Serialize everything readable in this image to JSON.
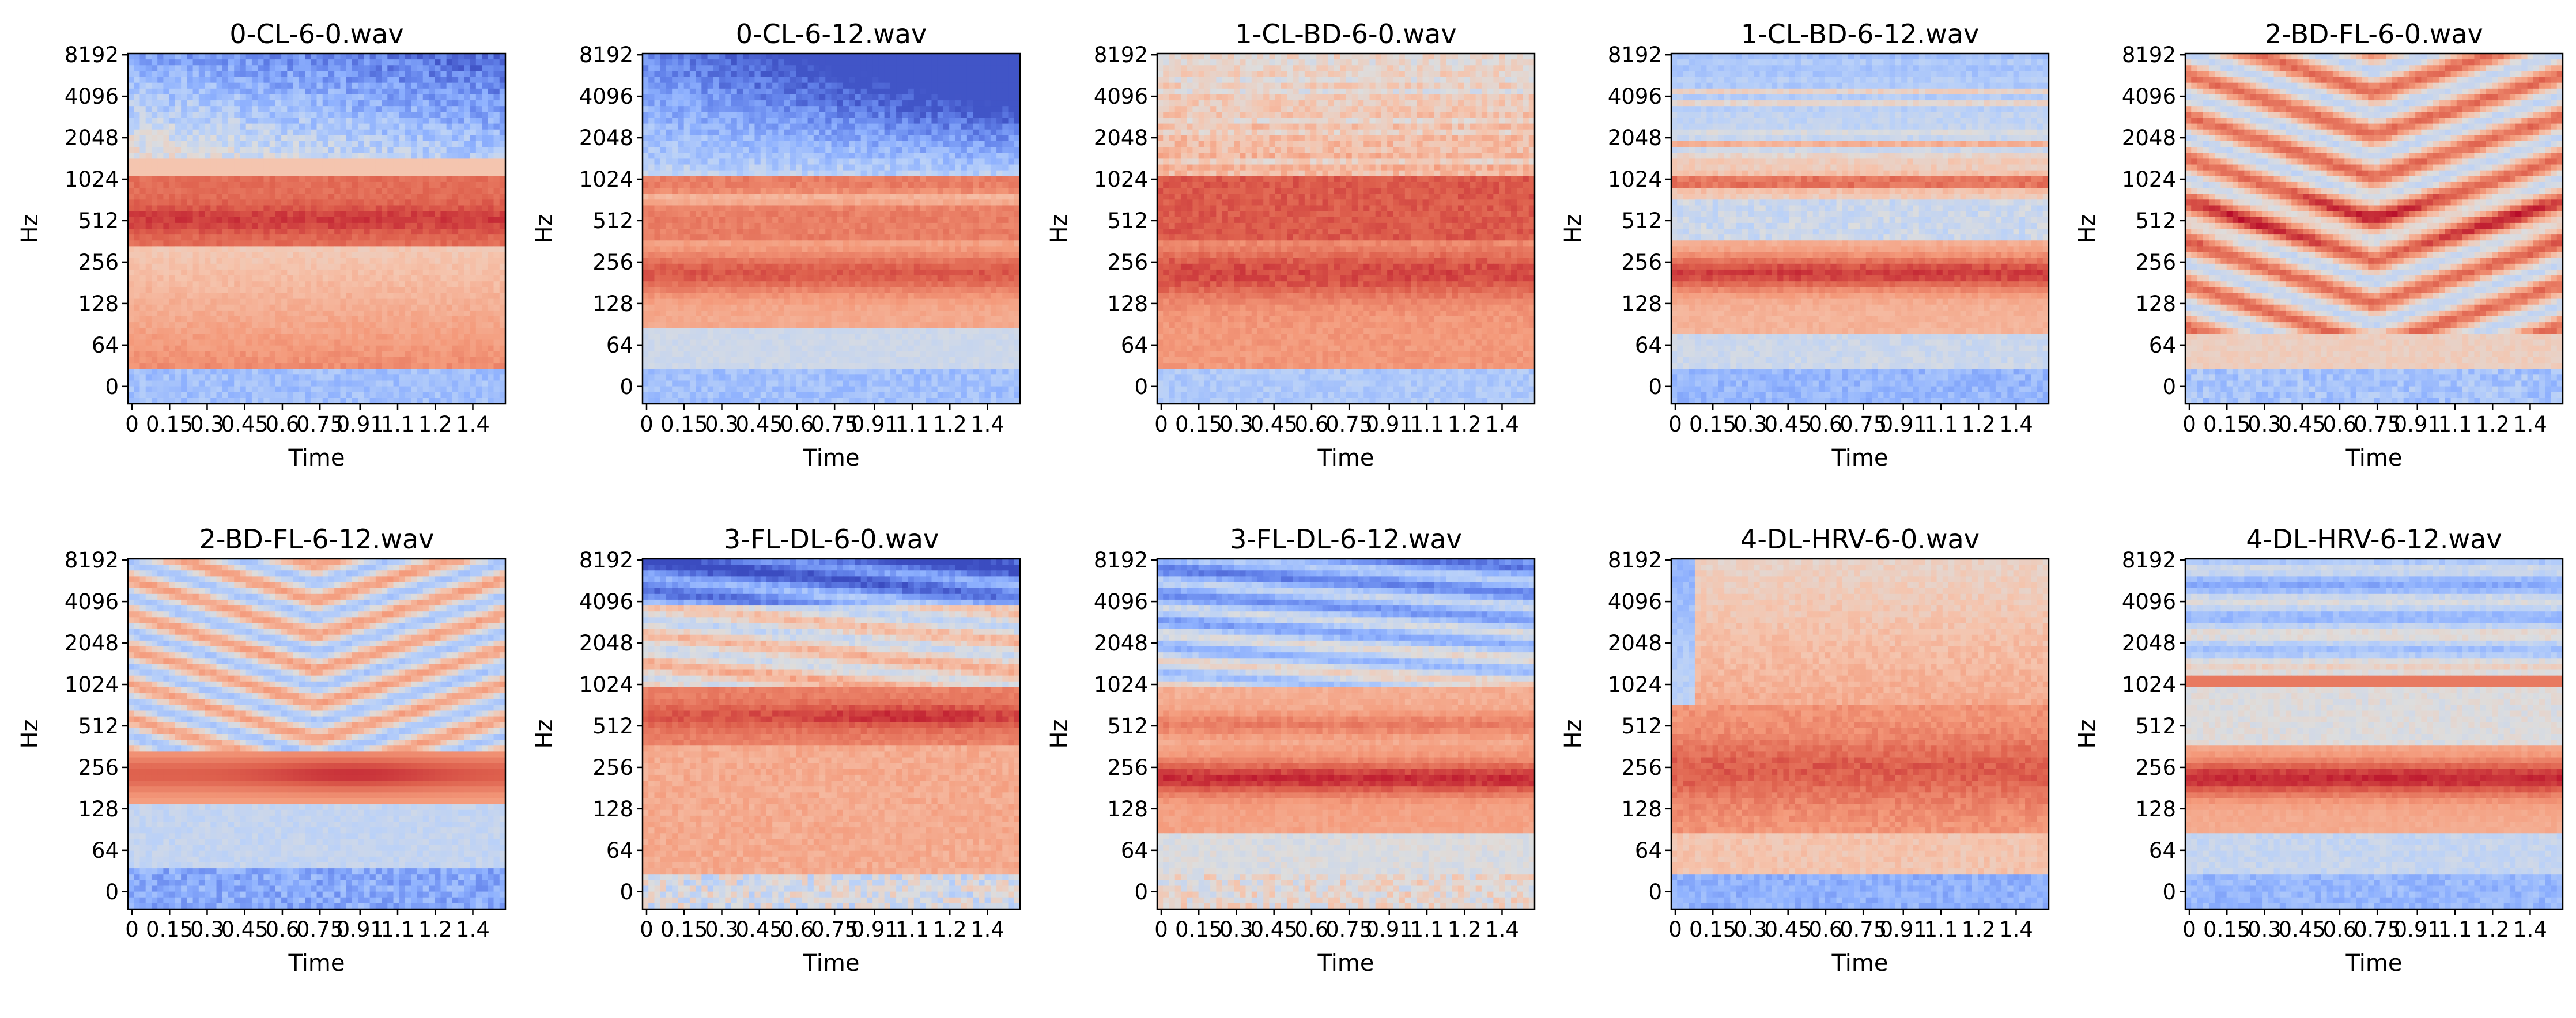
{
  "figure": {
    "background": "#ffffff",
    "colormap": "coolwarm"
  },
  "chart_data": [
    {
      "type": "heatmap",
      "title": "0-CL-6-0.wav",
      "xlabel": "Time",
      "ylabel": "Hz",
      "xticks": [
        "0",
        "0.15",
        "0.3",
        "0.45",
        "0.6",
        "0.75",
        "0.91",
        "1.1",
        "1.2",
        "1.4"
      ],
      "yticks": [
        "0",
        "64",
        "128",
        "256",
        "512",
        "1024",
        "2048",
        "4096",
        "8192"
      ],
      "xlim": [
        0,
        1.49
      ],
      "profile": "muted"
    },
    {
      "type": "heatmap",
      "title": "0-CL-6-12.wav",
      "xlabel": "Time",
      "ylabel": "Hz",
      "xticks": [
        "0",
        "0.15",
        "0.3",
        "0.45",
        "0.6",
        "0.75",
        "0.91",
        "1.1",
        "1.2",
        "1.4"
      ],
      "yticks": [
        "0",
        "64",
        "128",
        "256",
        "512",
        "1024",
        "2048",
        "4096",
        "8192"
      ],
      "xlim": [
        0,
        1.49
      ],
      "profile": "muted_low"
    },
    {
      "type": "heatmap",
      "title": "1-CL-BD-6-0.wav",
      "xlabel": "Time",
      "ylabel": "Hz",
      "xticks": [
        "0",
        "0.15",
        "0.3",
        "0.45",
        "0.6",
        "0.75",
        "0.91",
        "1.1",
        "1.2",
        "1.4"
      ],
      "yticks": [
        "0",
        "64",
        "128",
        "256",
        "512",
        "1024",
        "2048",
        "4096",
        "8192"
      ],
      "xlim": [
        0,
        1.49
      ],
      "profile": "warm"
    },
    {
      "type": "heatmap",
      "title": "1-CL-BD-6-12.wav",
      "xlabel": "Time",
      "ylabel": "Hz",
      "xticks": [
        "0",
        "0.15",
        "0.3",
        "0.45",
        "0.6",
        "0.75",
        "0.91",
        "1.1",
        "1.2",
        "1.4"
      ],
      "yticks": [
        "0",
        "64",
        "128",
        "256",
        "512",
        "1024",
        "2048",
        "4096",
        "8192"
      ],
      "xlim": [
        0,
        1.49
      ],
      "profile": "striped"
    },
    {
      "type": "heatmap",
      "title": "2-BD-FL-6-0.wav",
      "xlabel": "Time",
      "ylabel": "Hz",
      "xticks": [
        "0",
        "0.15",
        "0.3",
        "0.45",
        "0.6",
        "0.75",
        "0.91",
        "1.1",
        "1.2",
        "1.4"
      ],
      "yticks": [
        "0",
        "64",
        "128",
        "256",
        "512",
        "1024",
        "2048",
        "4096",
        "8192"
      ],
      "xlim": [
        0,
        1.49
      ],
      "profile": "flanger"
    },
    {
      "type": "heatmap",
      "title": "2-BD-FL-6-12.wav",
      "xlabel": "Time",
      "ylabel": "Hz",
      "xticks": [
        "0",
        "0.15",
        "0.3",
        "0.45",
        "0.6",
        "0.75",
        "0.91",
        "1.1",
        "1.2",
        "1.4"
      ],
      "yticks": [
        "0",
        "64",
        "128",
        "256",
        "512",
        "1024",
        "2048",
        "4096",
        "8192"
      ],
      "xlim": [
        0,
        1.49
      ],
      "profile": "flanger_cool"
    },
    {
      "type": "heatmap",
      "title": "3-FL-DL-6-0.wav",
      "xlabel": "Time",
      "ylabel": "Hz",
      "xticks": [
        "0",
        "0.15",
        "0.3",
        "0.45",
        "0.6",
        "0.75",
        "0.91",
        "1.1",
        "1.2",
        "1.4"
      ],
      "yticks": [
        "0",
        "64",
        "128",
        "256",
        "512",
        "1024",
        "2048",
        "4096",
        "8192"
      ],
      "xlim": [
        0,
        1.49
      ],
      "profile": "delay"
    },
    {
      "type": "heatmap",
      "title": "3-FL-DL-6-12.wav",
      "xlabel": "Time",
      "ylabel": "Hz",
      "xticks": [
        "0",
        "0.15",
        "0.3",
        "0.45",
        "0.6",
        "0.75",
        "0.91",
        "1.1",
        "1.2",
        "1.4"
      ],
      "yticks": [
        "0",
        "64",
        "128",
        "256",
        "512",
        "1024",
        "2048",
        "4096",
        "8192"
      ],
      "xlim": [
        0,
        1.49
      ],
      "profile": "delay_cool"
    },
    {
      "type": "heatmap",
      "title": "4-DL-HRV-6-0.wav",
      "xlabel": "Time",
      "ylabel": "Hz",
      "xticks": [
        "0",
        "0.15",
        "0.3",
        "0.45",
        "0.6",
        "0.75",
        "0.91",
        "1.1",
        "1.2",
        "1.4"
      ],
      "yticks": [
        "0",
        "64",
        "128",
        "256",
        "512",
        "1024",
        "2048",
        "4096",
        "8192"
      ],
      "xlim": [
        0,
        1.49
      ],
      "profile": "reverb"
    },
    {
      "type": "heatmap",
      "title": "4-DL-HRV-6-12.wav",
      "xlabel": "Time",
      "ylabel": "Hz",
      "xticks": [
        "0",
        "0.15",
        "0.3",
        "0.45",
        "0.6",
        "0.75",
        "0.91",
        "1.1",
        "1.2",
        "1.4"
      ],
      "yticks": [
        "0",
        "64",
        "128",
        "256",
        "512",
        "1024",
        "2048",
        "4096",
        "8192"
      ],
      "xlim": [
        0,
        1.49
      ],
      "profile": "reverb_cool"
    }
  ]
}
